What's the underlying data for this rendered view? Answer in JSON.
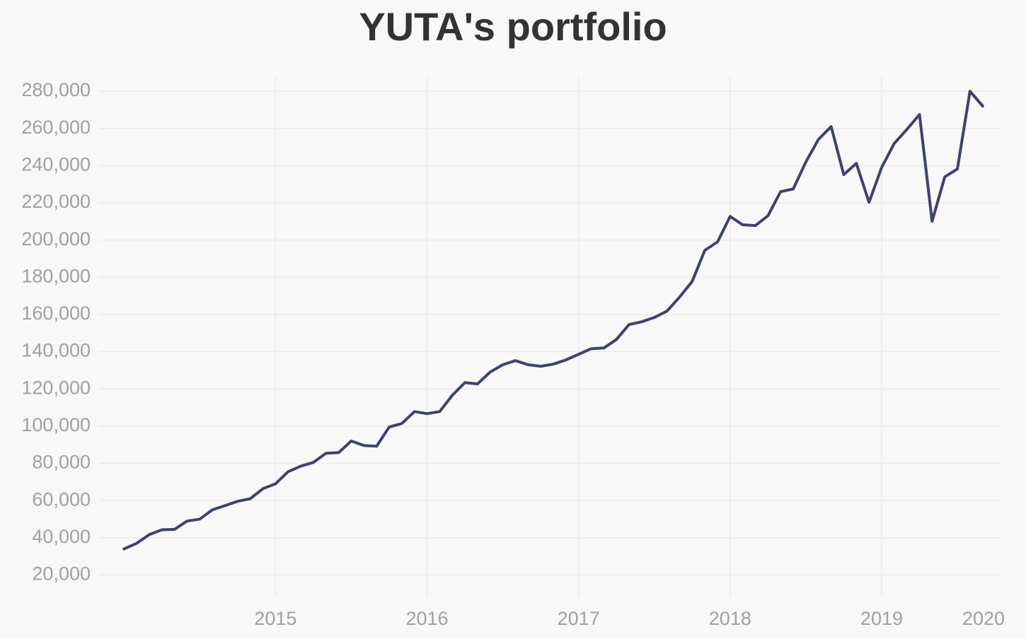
{
  "chart_data": {
    "type": "line",
    "title": "YUTA's portfolio",
    "x": [
      2014.0,
      2014.083,
      2014.167,
      2014.25,
      2014.333,
      2014.417,
      2014.5,
      2014.583,
      2014.667,
      2014.75,
      2014.833,
      2014.917,
      2015.0,
      2015.083,
      2015.167,
      2015.25,
      2015.333,
      2015.417,
      2015.5,
      2015.583,
      2015.667,
      2015.75,
      2015.833,
      2015.917,
      2016.0,
      2016.083,
      2016.167,
      2016.25,
      2016.333,
      2016.417,
      2016.5,
      2016.583,
      2016.667,
      2016.75,
      2016.833,
      2016.917,
      2017.0,
      2017.083,
      2017.167,
      2017.25,
      2017.333,
      2017.417,
      2017.5,
      2017.583,
      2017.667,
      2017.75,
      2017.833,
      2017.917,
      2018.0,
      2018.083,
      2018.167,
      2018.25,
      2018.333,
      2018.417,
      2018.5,
      2018.583,
      2018.667,
      2018.75,
      2018.833,
      2018.917,
      2019.0,
      2019.083,
      2019.167,
      2019.25,
      2019.333,
      2019.417,
      2019.5,
      2019.583,
      2019.667
    ],
    "series": [
      {
        "color": "#3d4270",
        "values": [
          34000,
          37000,
          41700,
          44300,
          44500,
          49000,
          50000,
          55000,
          57300,
          59600,
          61000,
          66400,
          69000,
          75500,
          78500,
          80500,
          85400,
          85800,
          92000,
          89600,
          89200,
          99500,
          101400,
          107800,
          106700,
          107800,
          116600,
          123400,
          122700,
          129100,
          133000,
          135200,
          133000,
          132200,
          133300,
          135600,
          138600,
          141600,
          142000,
          146600,
          154600,
          156100,
          158400,
          161800,
          169400,
          177800,
          194500,
          199000,
          212700,
          208200,
          207800,
          213100,
          226000,
          227500,
          242000,
          254100,
          261000,
          235200,
          241200,
          220300,
          239000,
          251900,
          259500,
          267500,
          210100,
          234000,
          238200,
          280000,
          272000
        ]
      }
    ],
    "xlim": [
      2013.77,
      2019.78
    ],
    "xticks": [
      2015,
      2016,
      2017,
      2018,
      2019,
      2020
    ],
    "ylim": [
      8000,
      288000
    ],
    "yticks": [
      {
        "value": 20000,
        "label": "20,000"
      },
      {
        "value": 40000,
        "label": "40,000"
      },
      {
        "value": 60000,
        "label": "60,000"
      },
      {
        "value": 80000,
        "label": "80,000"
      },
      {
        "value": 100000,
        "label": "100,000"
      },
      {
        "value": 120000,
        "label": "120,000"
      },
      {
        "value": 140000,
        "label": "140,000"
      },
      {
        "value": 160000,
        "label": "160,000"
      },
      {
        "value": 180000,
        "label": "180,000"
      },
      {
        "value": 200000,
        "label": "200,000"
      },
      {
        "value": 220000,
        "label": "220,000"
      },
      {
        "value": 240000,
        "label": "240,000"
      },
      {
        "value": 260000,
        "label": "260,000"
      },
      {
        "value": 280000,
        "label": "280,000"
      }
    ],
    "grid": true
  }
}
